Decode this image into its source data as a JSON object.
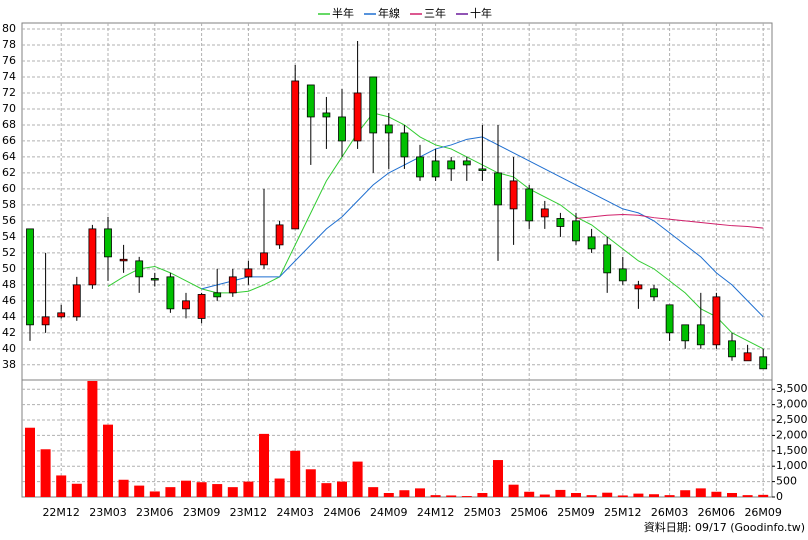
{
  "chart_data": {
    "type": "candlestick",
    "categories": [
      null,
      null,
      "22M12",
      null,
      null,
      "23M03",
      null,
      null,
      "23M06",
      null,
      null,
      "23M09",
      null,
      null,
      "23M12",
      null,
      null,
      "24M03",
      null,
      null,
      "24M06",
      null,
      null,
      "24M09",
      null,
      null,
      "24M12",
      null,
      null,
      "25M03",
      null,
      null,
      "25M06",
      null,
      null,
      "25M09",
      null,
      null,
      "25M12",
      null,
      null,
      "26M03",
      null,
      null,
      "26M06",
      null,
      null,
      "26M09"
    ],
    "open": [
      55,
      43,
      44,
      44,
      48,
      55,
      51,
      51,
      48.8,
      49,
      45,
      43.8,
      47,
      47,
      49,
      50.5,
      53,
      55,
      73,
      69.5,
      69,
      66,
      74,
      68,
      67,
      64,
      63.5,
      63.5,
      63.5,
      62.5,
      62,
      57.5,
      60,
      56.5,
      56.3,
      56,
      54,
      53,
      50,
      47.5,
      47.5,
      45.5,
      43,
      43,
      40.5,
      41,
      38.5,
      39
    ],
    "high": [
      55,
      52,
      45.5,
      49,
      55.5,
      56.5,
      53,
      51.5,
      49.5,
      49.5,
      47,
      47,
      50,
      50,
      51,
      60,
      56,
      75.5,
      73,
      71.5,
      72.5,
      78.5,
      74,
      69.5,
      68,
      65.5,
      65,
      64,
      64,
      68,
      68,
      64,
      60.5,
      58.5,
      57,
      57,
      55,
      54,
      51.5,
      48.5,
      48,
      45.5,
      43,
      47,
      47,
      42,
      40.5,
      40
    ],
    "low": [
      41,
      42,
      43.8,
      43.5,
      47.5,
      48.5,
      49.5,
      47,
      47.8,
      44.5,
      43.8,
      43.2,
      46,
      46.5,
      48,
      50,
      52.5,
      55,
      63,
      65,
      64,
      65,
      62,
      62.5,
      62.5,
      61,
      61,
      61,
      61,
      61,
      51,
      53,
      55,
      55,
      54,
      53,
      52,
      47,
      48,
      45,
      46,
      41,
      40,
      40,
      40,
      38.5,
      38.5,
      37.5
    ],
    "close": [
      43,
      44,
      44.5,
      48,
      55,
      51.5,
      51.2,
      49,
      48.6,
      45,
      46,
      46.8,
      46.5,
      49,
      50,
      52,
      55.5,
      73.5,
      69,
      69,
      66,
      72,
      67,
      67,
      64,
      61.5,
      61.5,
      62.5,
      63,
      62.3,
      58,
      61,
      56,
      57.5,
      55.3,
      53.5,
      52.5,
      49.5,
      48.5,
      48,
      46.5,
      42,
      41,
      40.5,
      46.5,
      39,
      39.5,
      37.5
    ],
    "volume": [
      2250,
      1550,
      700,
      430,
      3830,
      2350,
      560,
      370,
      180,
      320,
      530,
      480,
      420,
      320,
      500,
      2050,
      600,
      1500,
      900,
      450,
      500,
      1150,
      320,
      130,
      220,
      280,
      60,
      50,
      30,
      130,
      1200,
      400,
      170,
      80,
      230,
      130,
      60,
      140,
      50,
      110,
      90,
      60,
      220,
      280,
      170,
      130,
      60,
      70
    ],
    "up_color": "#ff0000",
    "down_color": "#00c000",
    "volume_color": "#ff0000",
    "ylim": [
      36.1,
      80.75
    ],
    "yticks": [
      38,
      40,
      42,
      44,
      46,
      48,
      50,
      52,
      54,
      56,
      58,
      60,
      62,
      64,
      66,
      68,
      70,
      72,
      74,
      76,
      78,
      80
    ],
    "volume_ylim": [
      0,
      3800
    ],
    "volume_yticks": [
      0,
      {
        "value": 500,
        "label": "500"
      },
      {
        "value": 1000,
        "label": "1,000"
      },
      {
        "value": 1500,
        "label": "1,500"
      },
      {
        "value": 2000,
        "label": "2,000"
      },
      {
        "value": 2500,
        "label": "2,500"
      },
      {
        "value": 3000,
        "label": "3,000"
      },
      {
        "value": 3500,
        "label": "3,500"
      }
    ],
    "series": [
      {
        "name": "半年",
        "color": "#33cc33",
        "values": [
          null,
          null,
          null,
          null,
          null,
          47.8,
          49,
          50,
          50.3,
          49.5,
          48.5,
          47.5,
          47,
          47,
          47.2,
          48,
          49,
          53,
          57,
          61,
          64,
          67,
          69.5,
          69,
          68,
          66.5,
          65.5,
          65,
          64,
          63,
          62,
          61.5,
          60,
          59,
          58,
          56.5,
          55.5,
          54,
          52.5,
          51,
          50,
          48.5,
          47,
          45,
          44,
          42,
          41,
          40
        ]
      },
      {
        "name": "年線",
        "color": "#1f6fd0",
        "values": [
          null,
          null,
          null,
          null,
          null,
          null,
          null,
          null,
          null,
          null,
          null,
          47.5,
          48,
          48.5,
          49,
          49,
          49,
          51,
          53,
          55,
          56.5,
          58.5,
          60.5,
          62,
          63,
          64,
          65,
          65.5,
          66.2,
          66.5,
          65.5,
          64.5,
          63.5,
          62.5,
          61.5,
          60.5,
          59.5,
          58.5,
          57.5,
          57,
          56,
          54.5,
          53,
          51.5,
          49.5,
          48,
          46,
          44
        ]
      },
      {
        "name": "三年",
        "color": "#d0206a",
        "values": [
          null,
          null,
          null,
          null,
          null,
          null,
          null,
          null,
          null,
          null,
          null,
          null,
          null,
          null,
          null,
          null,
          null,
          null,
          null,
          null,
          null,
          null,
          null,
          null,
          null,
          null,
          null,
          null,
          null,
          null,
          null,
          null,
          null,
          null,
          null,
          56.3,
          56.5,
          56.7,
          56.8,
          56.7,
          56.4,
          56.2,
          56,
          55.8,
          55.6,
          55.4,
          55.3,
          55.1
        ]
      },
      {
        "name": "十年",
        "color": "#6a1b9a",
        "values": [
          null,
          null,
          null,
          null,
          null,
          null,
          null,
          null,
          null,
          null,
          null,
          null,
          null,
          null,
          null,
          null,
          null,
          null,
          null,
          null,
          null,
          null,
          null,
          null,
          null,
          null,
          null,
          null,
          null,
          null,
          null,
          null,
          null,
          null,
          null,
          null,
          null,
          null,
          null,
          null,
          null,
          null,
          null,
          null,
          null,
          null,
          null,
          null
        ]
      }
    ],
    "grid": true,
    "source": "資料日期: 09/17 (Goodinfo.tw)"
  }
}
